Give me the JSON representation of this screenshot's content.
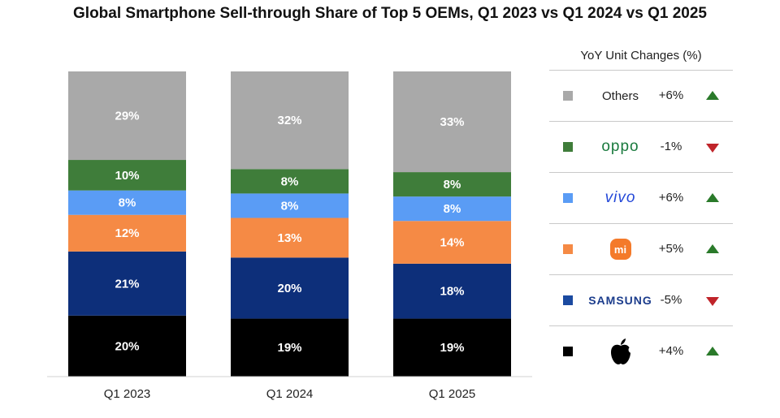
{
  "chart_data": {
    "type": "bar",
    "stacked": true,
    "title": "Global Smartphone Sell-through Share of Top 5 OEMs, Q1 2023 vs Q1 2024 vs Q1 2025",
    "categories": [
      "Q1 2023",
      "Q1 2024",
      "Q1 2025"
    ],
    "series": [
      {
        "name": "Apple",
        "color": "#000000",
        "values": [
          20,
          19,
          19
        ],
        "labels": [
          "20%",
          "19%",
          "19%"
        ]
      },
      {
        "name": "Samsung",
        "color": "#0d2f7a",
        "values": [
          21,
          20,
          18
        ],
        "labels": [
          "21%",
          "20%",
          "18%"
        ]
      },
      {
        "name": "Xiaomi",
        "color": "#f58a45",
        "values": [
          12,
          13,
          14
        ],
        "labels": [
          "12%",
          "13%",
          "14%"
        ]
      },
      {
        "name": "vivo",
        "color": "#5a9cf5",
        "values": [
          8,
          8,
          8
        ],
        "labels": [
          "8%",
          "8%",
          "8%"
        ]
      },
      {
        "name": "OPPO",
        "color": "#3f7d3a",
        "values": [
          10,
          8,
          8
        ],
        "labels": [
          "10%",
          "8%",
          "8%"
        ]
      },
      {
        "name": "Others",
        "color": "#a9a9a9",
        "values": [
          29,
          32,
          33
        ],
        "labels": [
          "29%",
          "32%",
          "33%"
        ]
      }
    ],
    "ylim": [
      0,
      100
    ],
    "legend": {
      "title": "YoY Unit Changes (%)",
      "placement": "right",
      "entries": [
        {
          "brand": "Others",
          "brand_style": "text",
          "color": "#a9a9a9",
          "change": "+6%",
          "direction": "up"
        },
        {
          "brand": "oppo",
          "brand_style": "oppo",
          "color": "#3f7d3a",
          "change": "-1%",
          "direction": "down"
        },
        {
          "brand": "vivo",
          "brand_style": "vivo",
          "color": "#5a9cf5",
          "change": "+6%",
          "direction": "up"
        },
        {
          "brand": "mi",
          "brand_style": "mi-logo",
          "color": "#f58a45",
          "change": "+5%",
          "direction": "up"
        },
        {
          "brand": "SAMSUNG",
          "brand_style": "samsung",
          "color": "#1b4aa0",
          "change": "-5%",
          "direction": "down"
        },
        {
          "brand": "apple",
          "brand_style": "apple-logo",
          "color": "#000000",
          "change": "+4%",
          "direction": "up"
        }
      ]
    }
  }
}
